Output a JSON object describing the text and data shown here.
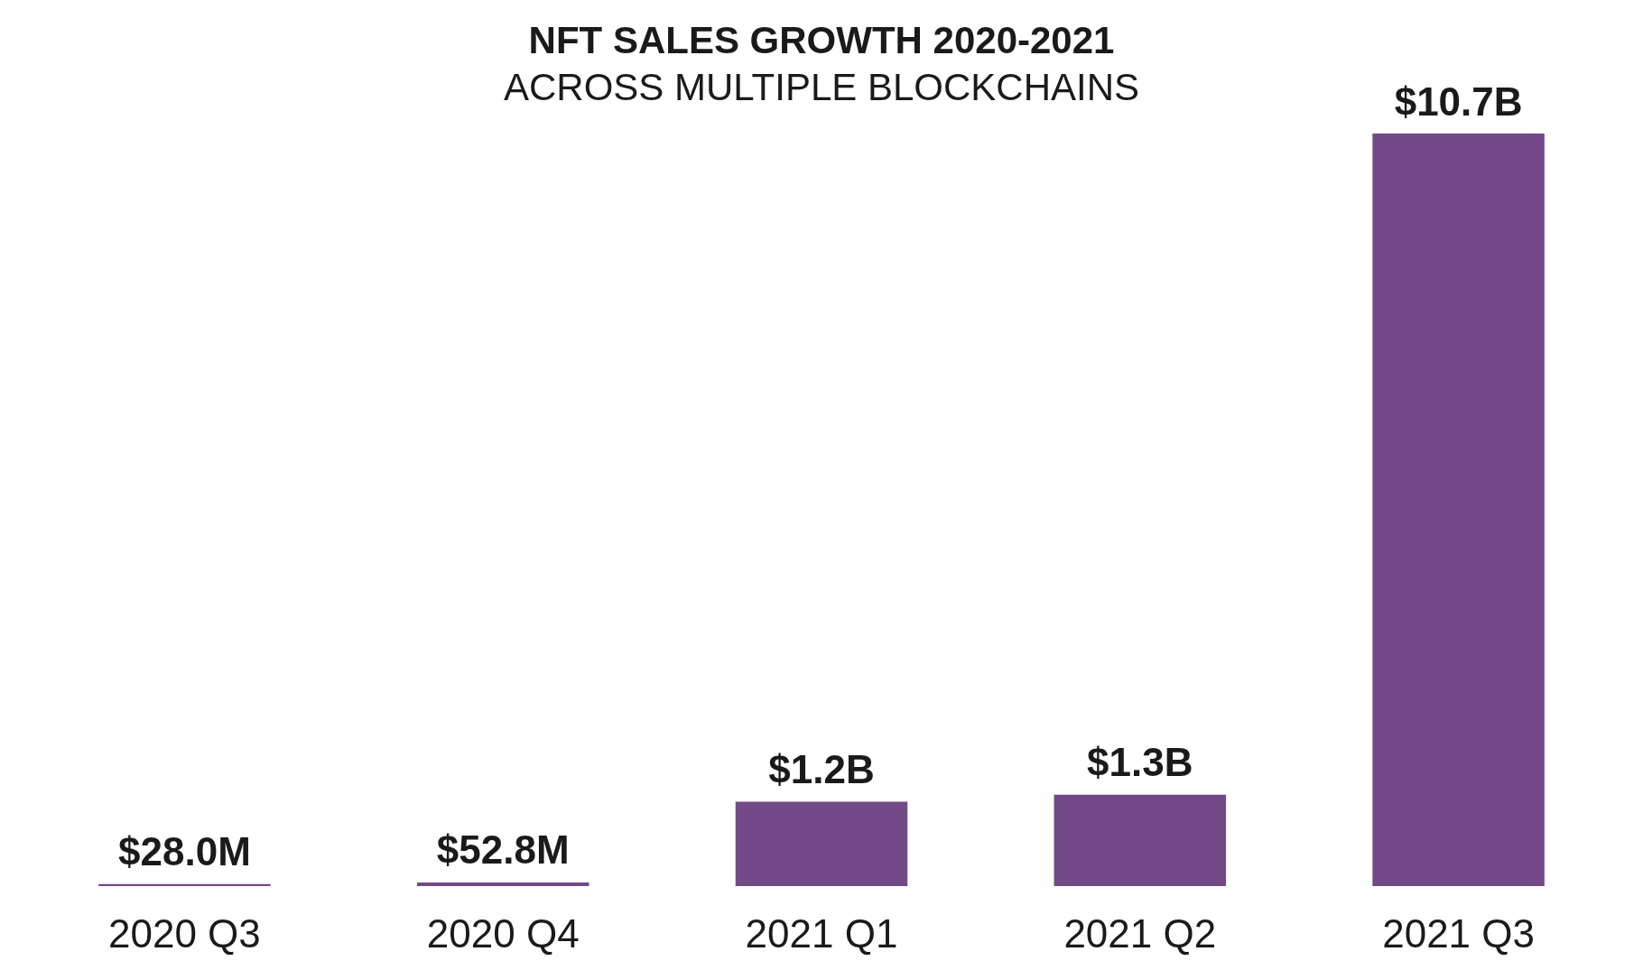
{
  "chart_data": {
    "type": "bar",
    "title": "NFT SALES GROWTH 2020-2021",
    "subtitle": "ACROSS MULTIPLE BLOCKCHAINS",
    "categories": [
      "2020 Q3",
      "2020 Q4",
      "2021 Q1",
      "2021 Q2",
      "2021 Q3"
    ],
    "values": [
      28000000,
      52800000,
      1200000000,
      1300000000,
      10700000000
    ],
    "value_labels": [
      "$28.0M",
      "$52.8M",
      "$1.2B",
      "$1.3B",
      "$10.7B"
    ],
    "color": "#714a87"
  }
}
